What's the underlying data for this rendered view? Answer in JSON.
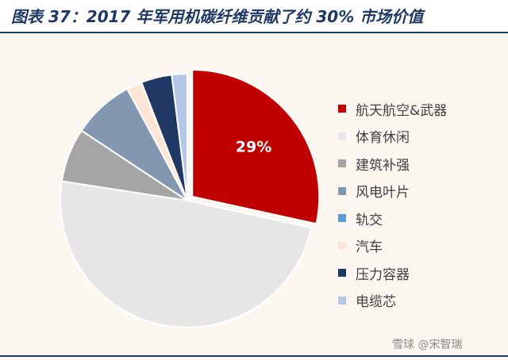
{
  "title": "图表 37：2017 年军用机碳纤维贡献了约 30% 市场价值",
  "watermark": "雪球 @宋智瑞",
  "chart_data": {
    "type": "pie",
    "title": "",
    "slices": [
      {
        "label": "航天航空&武器",
        "value": 29,
        "color": "#c00000",
        "data_label": "29%",
        "exploded": true
      },
      {
        "label": "体育休闲",
        "value": 50,
        "color": "#e7e6e6"
      },
      {
        "label": "建筑补强",
        "value": 7,
        "color": "#a5a5a5"
      },
      {
        "label": "风电叶片",
        "value": 8,
        "color": "#8497b0"
      },
      {
        "label": "轨交",
        "value": 0,
        "color": "#5b9bd5"
      },
      {
        "label": "汽车",
        "value": 2,
        "color": "#fbe5d6"
      },
      {
        "label": "压力容器",
        "value": 4,
        "color": "#203864"
      },
      {
        "label": "电缆芯",
        "value": 2,
        "color": "#b4c7e7"
      }
    ],
    "legend_position": "right"
  }
}
